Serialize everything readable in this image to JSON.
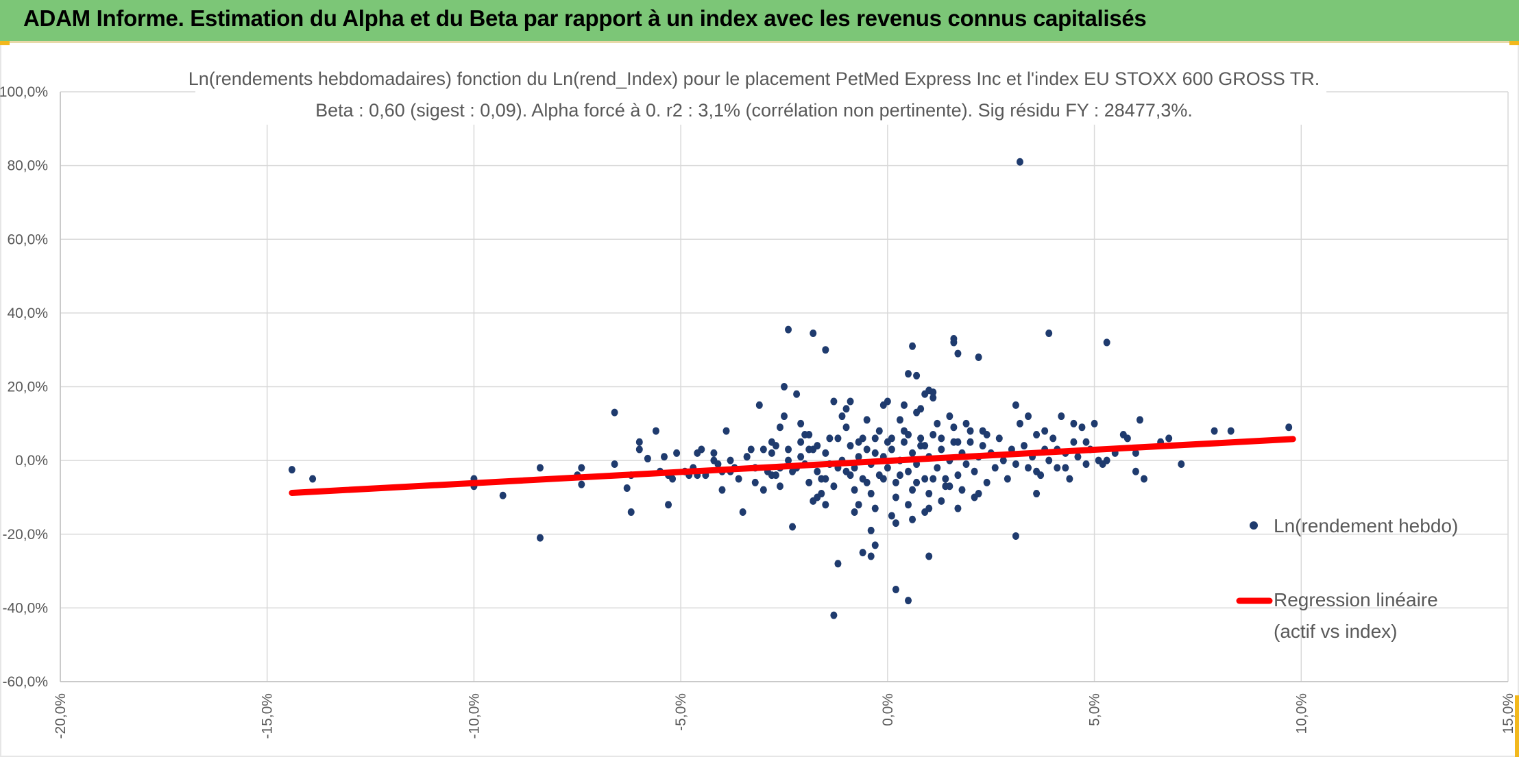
{
  "header": {
    "title": "ADAM Informe. Estimation du Alpha et du Beta par rapport à un index avec les revenus connus capitalisés"
  },
  "colors": {
    "banner": "#7cc677",
    "points": "#1f3b6e",
    "regression": "#ff0000",
    "grid": "#d9d9d9",
    "text": "#595959"
  },
  "chart_data": {
    "type": "scatter",
    "title_line1": "Ln(rendements hebdomadaires) fonction du Ln(rend_Index) pour le placement PetMed Express Inc et l'index EU STOXX 600 GROSS TR.",
    "title_line2": "Beta : 0,60 (sigest : 0,09). Alpha forcé à 0. r2 : 3,1% (corrélation non pertinente). Sig résidu FY : 28477,3%.",
    "xlim": [
      -0.2,
      0.15
    ],
    "ylim": [
      -0.6,
      1.0
    ],
    "x_ticks": [
      -0.2,
      -0.15,
      -0.1,
      -0.05,
      0.0,
      0.05,
      0.1,
      0.15
    ],
    "x_tick_labels": [
      "-20,0%",
      "-15,0%",
      "-10,0%",
      "-5,0%",
      "0,0%",
      "5,0%",
      "10,0%",
      "15,0%"
    ],
    "y_ticks": [
      1.0,
      0.8,
      0.6,
      0.4,
      0.2,
      0.0,
      -0.2,
      -0.4,
      -0.6
    ],
    "y_tick_labels": [
      "100,0%",
      "80,0%",
      "60,0%",
      "40,0%",
      "20,0%",
      "0,0%",
      "-20,0%",
      "-40,0%",
      "-60,0%"
    ],
    "grid": true,
    "legend_position": "right",
    "legend": [
      {
        "label": "Ln(rendement hebdo)",
        "marker": "dot"
      },
      {
        "label_line1": "Regression linéaire",
        "label_line2": "(actif vs index)",
        "marker": "line"
      }
    ],
    "regression": {
      "beta": 0.6,
      "alpha": 0.0,
      "x": [
        -0.144,
        0.098
      ],
      "y": [
        -0.088,
        0.058
      ]
    },
    "series": [
      {
        "name": "Ln(rendement hebdo)",
        "points": [
          [
            -0.144,
            -0.025
          ],
          [
            -0.139,
            -0.05
          ],
          [
            -0.1,
            -0.05
          ],
          [
            -0.1,
            -0.07
          ],
          [
            -0.093,
            -0.095
          ],
          [
            -0.084,
            -0.02
          ],
          [
            -0.084,
            -0.21
          ],
          [
            -0.075,
            -0.04
          ],
          [
            -0.074,
            -0.02
          ],
          [
            -0.074,
            -0.065
          ],
          [
            -0.066,
            0.13
          ],
          [
            -0.066,
            -0.01
          ],
          [
            -0.063,
            -0.075
          ],
          [
            -0.062,
            -0.04
          ],
          [
            -0.062,
            -0.14
          ],
          [
            -0.06,
            0.05
          ],
          [
            -0.06,
            0.03
          ],
          [
            -0.058,
            0.005
          ],
          [
            -0.056,
            0.08
          ],
          [
            -0.055,
            -0.03
          ],
          [
            -0.054,
            0.01
          ],
          [
            -0.053,
            -0.04
          ],
          [
            -0.053,
            -0.12
          ],
          [
            -0.052,
            -0.05
          ],
          [
            -0.051,
            0.02
          ],
          [
            -0.048,
            -0.04
          ],
          [
            -0.047,
            -0.02
          ],
          [
            -0.046,
            -0.04
          ],
          [
            -0.045,
            0.03
          ],
          [
            -0.044,
            -0.04
          ],
          [
            -0.042,
            0.02
          ],
          [
            -0.041,
            -0.01
          ],
          [
            -0.04,
            -0.03
          ],
          [
            -0.04,
            -0.08
          ],
          [
            -0.039,
            0.08
          ],
          [
            -0.038,
            0.0
          ],
          [
            -0.037,
            -0.02
          ],
          [
            -0.036,
            -0.05
          ],
          [
            -0.035,
            -0.14
          ],
          [
            -0.034,
            0.01
          ],
          [
            -0.033,
            0.03
          ],
          [
            -0.032,
            -0.06
          ],
          [
            -0.031,
            0.15
          ],
          [
            -0.03,
            0.03
          ],
          [
            -0.029,
            -0.03
          ],
          [
            -0.028,
            0.05
          ],
          [
            -0.027,
            0.04
          ],
          [
            -0.026,
            -0.02
          ],
          [
            -0.026,
            -0.07
          ],
          [
            -0.025,
            0.2
          ],
          [
            -0.025,
            0.12
          ],
          [
            -0.024,
            0.0
          ],
          [
            -0.023,
            -0.03
          ],
          [
            -0.023,
            -0.18
          ],
          [
            -0.022,
            0.18
          ],
          [
            -0.021,
            0.1
          ],
          [
            -0.021,
            0.05
          ],
          [
            -0.02,
            -0.01
          ],
          [
            -0.019,
            -0.06
          ],
          [
            -0.018,
            0.03
          ],
          [
            -0.017,
            -0.1
          ],
          [
            -0.017,
            -0.03
          ],
          [
            -0.016,
            -0.05
          ],
          [
            -0.015,
            0.02
          ],
          [
            -0.014,
            -0.01
          ],
          [
            -0.013,
            -0.07
          ],
          [
            -0.012,
            0.06
          ],
          [
            -0.011,
            0.0
          ],
          [
            -0.01,
            -0.03
          ],
          [
            -0.009,
            0.04
          ],
          [
            -0.008,
            -0.02
          ],
          [
            -0.007,
            0.01
          ],
          [
            -0.006,
            -0.05
          ],
          [
            -0.005,
            0.03
          ],
          [
            -0.004,
            -0.01
          ],
          [
            -0.003,
            0.02
          ],
          [
            -0.002,
            -0.04
          ],
          [
            -0.001,
            0.01
          ],
          [
            0.0,
            -0.02
          ],
          [
            0.001,
            0.03
          ],
          [
            0.002,
            -0.06
          ],
          [
            0.003,
            0.0
          ],
          [
            0.004,
            0.05
          ],
          [
            0.005,
            -0.03
          ],
          [
            0.006,
            0.02
          ],
          [
            0.007,
            -0.01
          ],
          [
            0.008,
            0.04
          ],
          [
            0.009,
            -0.05
          ],
          [
            0.01,
            0.01
          ],
          [
            0.011,
            0.07
          ],
          [
            0.012,
            -0.02
          ],
          [
            0.013,
            0.03
          ],
          [
            0.014,
            -0.07
          ],
          [
            0.015,
            0.0
          ],
          [
            0.016,
            0.05
          ],
          [
            0.017,
            -0.04
          ],
          [
            0.018,
            0.02
          ],
          [
            0.019,
            -0.01
          ],
          [
            0.02,
            0.08
          ],
          [
            0.021,
            -0.03
          ],
          [
            0.022,
            0.01
          ],
          [
            0.023,
            0.04
          ],
          [
            0.024,
            -0.06
          ],
          [
            0.025,
            0.02
          ],
          [
            0.026,
            -0.02
          ],
          [
            0.027,
            0.06
          ],
          [
            0.028,
            0.0
          ],
          [
            0.029,
            -0.05
          ],
          [
            0.03,
            0.03
          ],
          [
            0.031,
            -0.01
          ],
          [
            0.032,
            0.1
          ],
          [
            0.033,
            0.04
          ],
          [
            0.034,
            -0.02
          ],
          [
            0.035,
            0.01
          ],
          [
            0.036,
            0.07
          ],
          [
            0.037,
            -0.04
          ],
          [
            0.038,
            0.03
          ],
          [
            0.039,
            0.0
          ],
          [
            0.04,
            0.06
          ],
          [
            0.041,
            -0.02
          ],
          [
            0.042,
            0.12
          ],
          [
            0.043,
            0.02
          ],
          [
            0.044,
            -0.05
          ],
          [
            0.045,
            0.05
          ],
          [
            0.046,
            0.01
          ],
          [
            0.047,
            0.09
          ],
          [
            0.048,
            -0.01
          ],
          [
            0.049,
            0.03
          ],
          [
            0.05,
            0.1
          ],
          [
            0.051,
            0.0
          ],
          [
            -0.03,
            -0.08
          ],
          [
            -0.026,
            0.09
          ],
          [
            -0.022,
            -0.02
          ],
          [
            -0.019,
            0.07
          ],
          [
            -0.016,
            -0.09
          ],
          [
            -0.014,
            0.06
          ],
          [
            -0.012,
            -0.02
          ],
          [
            -0.01,
            0.09
          ],
          [
            -0.008,
            -0.08
          ],
          [
            -0.006,
            0.06
          ],
          [
            -0.004,
            -0.09
          ],
          [
            -0.002,
            0.08
          ],
          [
            0.0,
            0.05
          ],
          [
            0.002,
            -0.1
          ],
          [
            0.004,
            0.08
          ],
          [
            0.006,
            -0.08
          ],
          [
            0.008,
            0.06
          ],
          [
            0.01,
            -0.09
          ],
          [
            0.012,
            0.1
          ],
          [
            0.014,
            -0.05
          ],
          [
            0.016,
            0.09
          ],
          [
            0.018,
            -0.08
          ],
          [
            0.02,
            0.05
          ],
          [
            0.022,
            -0.09
          ],
          [
            0.024,
            0.07
          ],
          [
            -0.011,
            0.12
          ],
          [
            -0.009,
            0.16
          ],
          [
            -0.007,
            -0.12
          ],
          [
            -0.005,
            0.11
          ],
          [
            -0.003,
            -0.13
          ],
          [
            -0.001,
            0.15
          ],
          [
            0.001,
            -0.15
          ],
          [
            0.003,
            0.11
          ],
          [
            0.005,
            -0.12
          ],
          [
            0.007,
            0.13
          ],
          [
            0.009,
            -0.14
          ],
          [
            0.011,
            0.17
          ],
          [
            0.013,
            -0.11
          ],
          [
            0.015,
            0.12
          ],
          [
            0.017,
            -0.13
          ],
          [
            0.019,
            0.1
          ],
          [
            0.021,
            -0.1
          ],
          [
            0.023,
            0.08
          ],
          [
            -0.013,
            0.16
          ],
          [
            -0.015,
            -0.12
          ],
          [
            -0.01,
            0.14
          ],
          [
            -0.008,
            -0.14
          ],
          [
            0.0,
            0.16
          ],
          [
            0.002,
            -0.17
          ],
          [
            0.004,
            0.15
          ],
          [
            0.006,
            -0.16
          ],
          [
            0.008,
            0.14
          ],
          [
            0.01,
            -0.13
          ],
          [
            -0.02,
            0.07
          ],
          [
            -0.018,
            -0.11
          ],
          [
            -0.024,
            0.03
          ],
          [
            -0.028,
            -0.04
          ],
          [
            -0.001,
            -0.05
          ],
          [
            0.001,
            0.06
          ],
          [
            0.003,
            -0.04
          ],
          [
            0.005,
            0.07
          ],
          [
            0.007,
            -0.06
          ],
          [
            0.009,
            0.04
          ],
          [
            -0.003,
            0.06
          ],
          [
            -0.005,
            -0.06
          ],
          [
            -0.007,
            0.05
          ],
          [
            -0.009,
            -0.04
          ],
          [
            0.011,
            -0.05
          ],
          [
            0.013,
            0.06
          ],
          [
            0.015,
            -0.07
          ],
          [
            0.017,
            0.05
          ],
          [
            -0.017,
            0.04
          ],
          [
            -0.015,
            -0.05
          ],
          [
            -0.024,
            0.355
          ],
          [
            -0.018,
            0.345
          ],
          [
            -0.015,
            0.3
          ],
          [
            0.006,
            0.31
          ],
          [
            0.007,
            0.23
          ],
          [
            0.005,
            0.235
          ],
          [
            0.009,
            0.18
          ],
          [
            0.016,
            0.33
          ],
          [
            0.016,
            0.32
          ],
          [
            0.017,
            0.29
          ],
          [
            0.022,
            0.28
          ],
          [
            0.032,
            0.81
          ],
          [
            0.039,
            0.345
          ],
          [
            0.053,
            0.32
          ],
          [
            0.01,
            0.19
          ],
          [
            0.011,
            0.185
          ],
          [
            -0.012,
            -0.28
          ],
          [
            -0.006,
            -0.25
          ],
          [
            -0.004,
            -0.26
          ],
          [
            0.002,
            -0.35
          ],
          [
            0.005,
            -0.38
          ],
          [
            -0.013,
            -0.42
          ],
          [
            0.01,
            -0.26
          ],
          [
            0.031,
            -0.205
          ],
          [
            -0.003,
            -0.23
          ],
          [
            -0.004,
            -0.19
          ],
          [
            0.031,
            0.15
          ],
          [
            0.034,
            0.12
          ],
          [
            0.036,
            -0.09
          ],
          [
            0.045,
            0.1
          ],
          [
            0.057,
            0.07
          ],
          [
            0.058,
            0.06
          ],
          [
            0.06,
            0.02
          ],
          [
            0.061,
            0.11
          ],
          [
            0.062,
            -0.05
          ],
          [
            0.066,
            0.05
          ],
          [
            0.068,
            0.06
          ],
          [
            0.071,
            -0.01
          ],
          [
            0.079,
            0.08
          ],
          [
            0.083,
            0.08
          ],
          [
            0.097,
            0.09
          ],
          [
            0.053,
            0.0
          ],
          [
            0.055,
            0.02
          ],
          [
            0.06,
            -0.03
          ],
          [
            0.041,
            0.03
          ],
          [
            0.043,
            -0.02
          ],
          [
            0.048,
            0.05
          ],
          [
            0.052,
            -0.01
          ],
          [
            0.038,
            0.08
          ],
          [
            0.036,
            -0.03
          ],
          [
            -0.034,
            0.01
          ],
          [
            -0.038,
            -0.03
          ],
          [
            -0.042,
            0.0
          ],
          [
            -0.046,
            0.02
          ],
          [
            -0.049,
            -0.03
          ],
          [
            -0.032,
            -0.02
          ],
          [
            -0.028,
            0.02
          ],
          [
            -0.027,
            -0.04
          ],
          [
            -0.021,
            0.01
          ],
          [
            -0.019,
            0.03
          ]
        ]
      }
    ]
  }
}
